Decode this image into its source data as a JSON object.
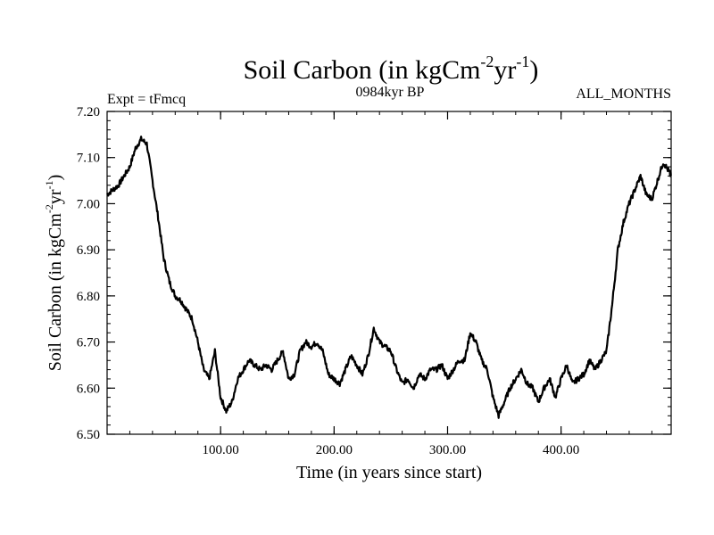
{
  "chart_data": {
    "type": "line",
    "title": "Soil Carbon (in kgCm",
    "title_sup1": "-2",
    "title_mid": "yr",
    "title_sup2": "-1",
    "title_end": ")",
    "subtitle_left": "Expt = tFmcq",
    "subtitle_center": "0984kyr BP",
    "subtitle_right": "ALL_MONTHS",
    "xlabel": "Time (in years since start)",
    "ylabel": "Soil Carbon (in kgCm",
    "ylabel_sup1": "-2",
    "ylabel_mid": "yr",
    "ylabel_sup2": "-1",
    "ylabel_end": ")",
    "xlim": [
      0,
      497
    ],
    "ylim": [
      6.5,
      7.2
    ],
    "xticks": [
      100,
      200,
      300,
      400
    ],
    "xtick_labels": [
      "100.00",
      "200.00",
      "300.00",
      "400.00"
    ],
    "yticks": [
      6.5,
      6.6,
      6.7,
      6.8,
      6.9,
      7.0,
      7.1,
      7.2
    ],
    "ytick_labels": [
      "6.50",
      "6.60",
      "6.70",
      "6.80",
      "6.90",
      "7.00",
      "7.10",
      "7.20"
    ],
    "series": [
      {
        "name": "Soil Carbon",
        "x": [
          0,
          5,
          10,
          15,
          20,
          25,
          30,
          35,
          40,
          45,
          50,
          55,
          60,
          65,
          70,
          75,
          80,
          85,
          90,
          95,
          100,
          105,
          110,
          115,
          120,
          125,
          130,
          135,
          140,
          145,
          150,
          155,
          160,
          165,
          170,
          175,
          180,
          185,
          190,
          195,
          200,
          205,
          210,
          215,
          220,
          225,
          230,
          235,
          240,
          245,
          250,
          255,
          260,
          265,
          270,
          275,
          280,
          285,
          290,
          295,
          300,
          305,
          310,
          315,
          320,
          325,
          330,
          335,
          340,
          345,
          350,
          355,
          360,
          365,
          370,
          375,
          380,
          385,
          390,
          395,
          400,
          405,
          410,
          415,
          420,
          425,
          430,
          435,
          440,
          445,
          450,
          455,
          460,
          465,
          470,
          475,
          480,
          485,
          490,
          495,
          497
        ],
        "values": [
          7.02,
          7.03,
          7.04,
          7.06,
          7.08,
          7.12,
          7.14,
          7.13,
          7.05,
          6.97,
          6.88,
          6.83,
          6.8,
          6.79,
          6.77,
          6.75,
          6.7,
          6.64,
          6.62,
          6.68,
          6.58,
          6.55,
          6.57,
          6.62,
          6.64,
          6.66,
          6.65,
          6.64,
          6.65,
          6.64,
          6.66,
          6.68,
          6.62,
          6.63,
          6.68,
          6.7,
          6.69,
          6.7,
          6.68,
          6.63,
          6.62,
          6.61,
          6.64,
          6.67,
          6.65,
          6.63,
          6.67,
          6.73,
          6.7,
          6.69,
          6.68,
          6.64,
          6.61,
          6.62,
          6.6,
          6.63,
          6.62,
          6.64,
          6.64,
          6.65,
          6.62,
          6.64,
          6.66,
          6.66,
          6.72,
          6.7,
          6.66,
          6.64,
          6.58,
          6.54,
          6.57,
          6.6,
          6.62,
          6.64,
          6.61,
          6.6,
          6.57,
          6.6,
          6.62,
          6.58,
          6.62,
          6.65,
          6.61,
          6.62,
          6.63,
          6.66,
          6.64,
          6.66,
          6.68,
          6.78,
          6.9,
          6.96,
          7.0,
          7.03,
          7.06,
          7.02,
          7.01,
          7.05,
          7.09,
          7.07,
          7.06
        ]
      }
    ]
  }
}
